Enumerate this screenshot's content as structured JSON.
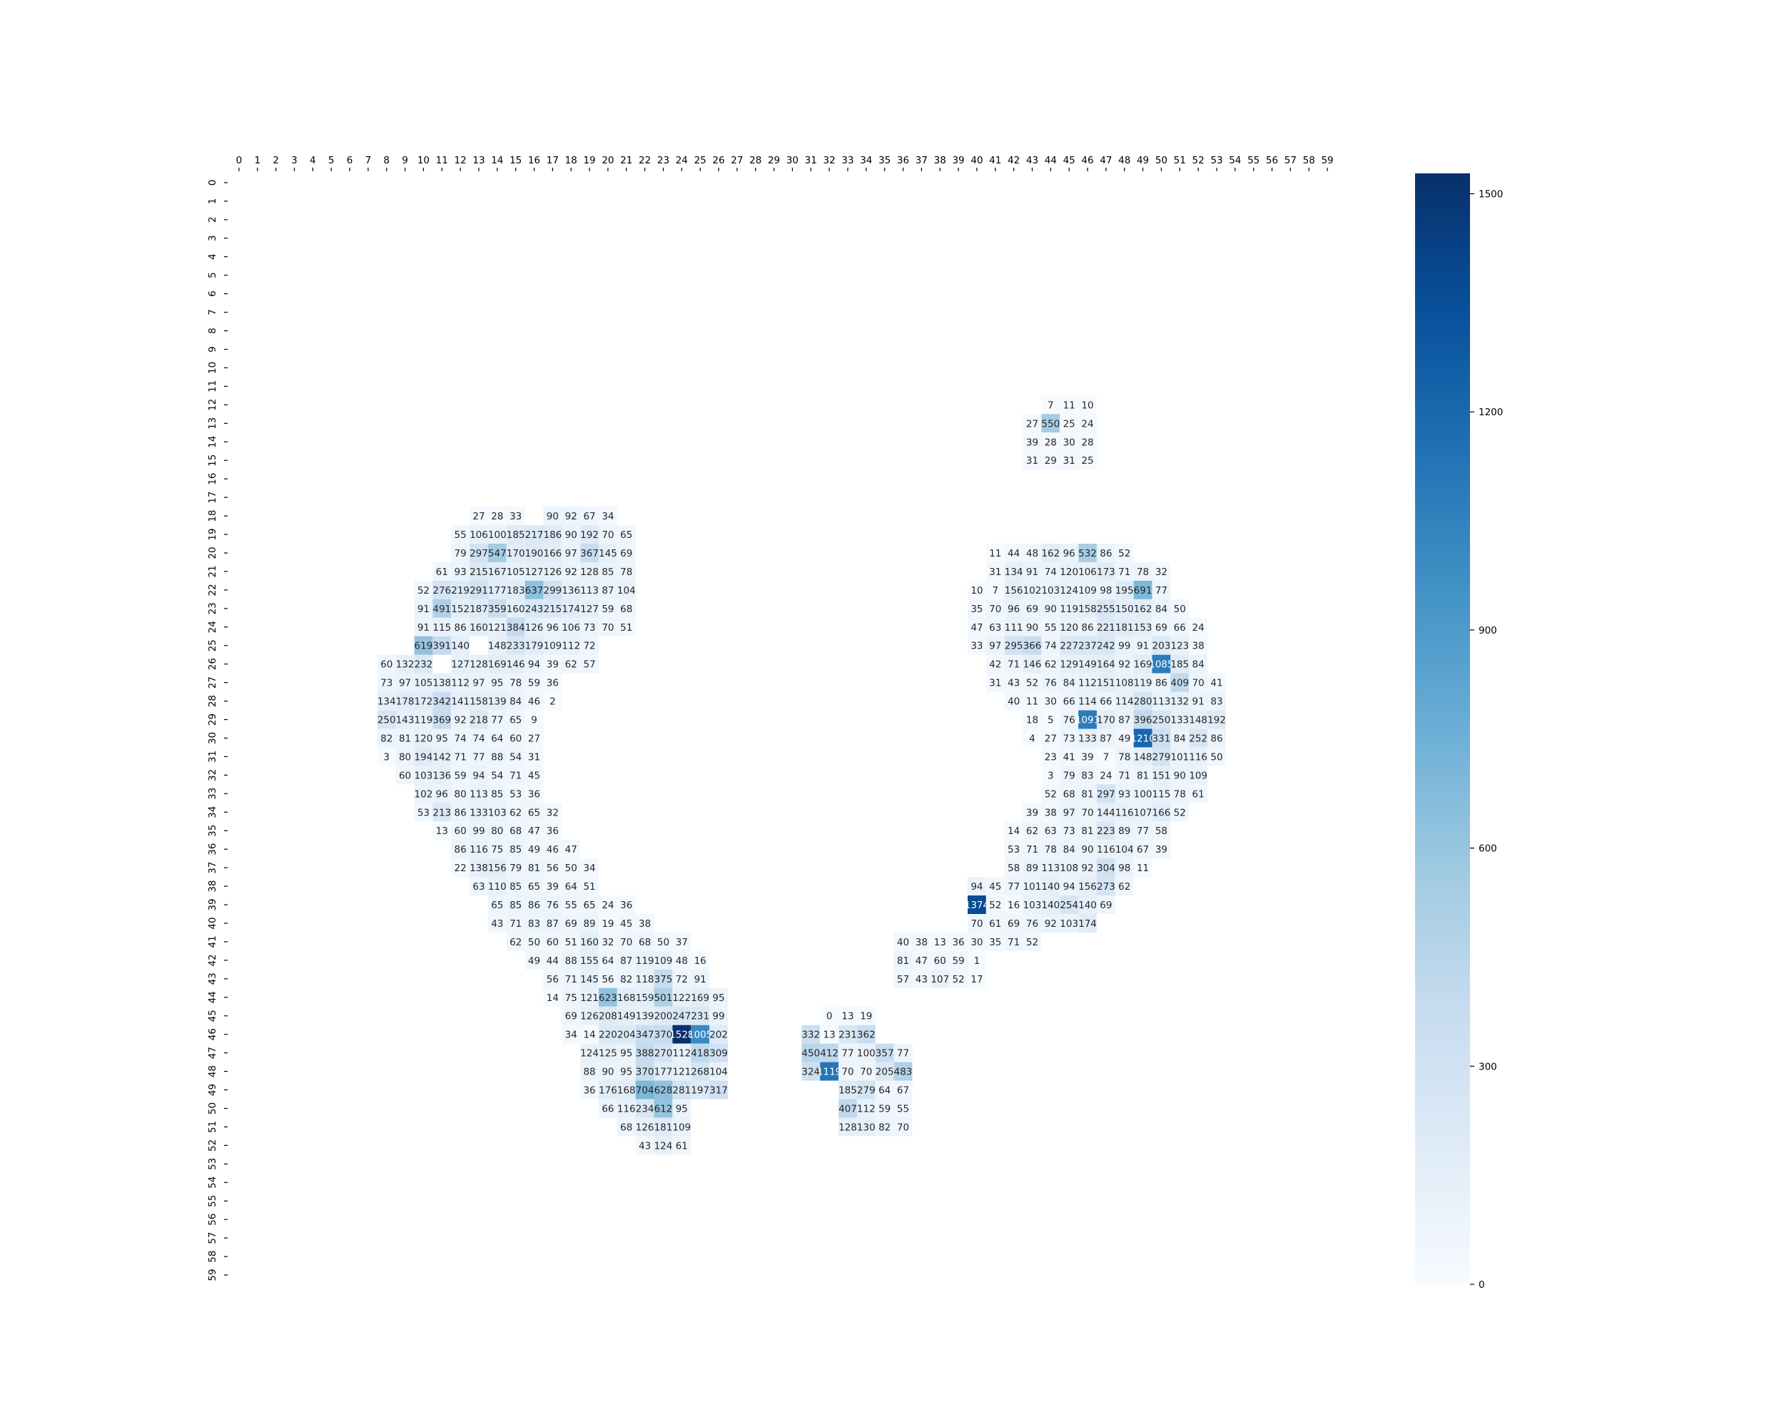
{
  "chart_data": {
    "type": "heatmap",
    "x_ticks": [
      "0",
      "1",
      "2",
      "3",
      "4",
      "5",
      "6",
      "7",
      "8",
      "9",
      "10",
      "11",
      "12",
      "13",
      "14",
      "15",
      "16",
      "17",
      "18",
      "19",
      "20",
      "21",
      "22",
      "23",
      "24",
      "25",
      "26",
      "27",
      "28",
      "29",
      "30",
      "31",
      "32",
      "33",
      "34",
      "35",
      "36",
      "37",
      "38",
      "39",
      "40",
      "41",
      "42",
      "43",
      "44",
      "45",
      "46",
      "47",
      "48",
      "49",
      "50",
      "51",
      "52",
      "53",
      "54",
      "55",
      "56",
      "57",
      "58",
      "59"
    ],
    "y_ticks": [
      "0",
      "1",
      "2",
      "3",
      "4",
      "5",
      "6",
      "7",
      "8",
      "9",
      "10",
      "11",
      "12",
      "13",
      "14",
      "15",
      "16",
      "17",
      "18",
      "19",
      "20",
      "21",
      "22",
      "23",
      "24",
      "25",
      "26",
      "27",
      "28",
      "29",
      "30",
      "31",
      "32",
      "33",
      "34",
      "35",
      "36",
      "37",
      "38",
      "39",
      "40",
      "41",
      "42",
      "43",
      "44",
      "45",
      "46",
      "47",
      "48",
      "49",
      "50",
      "51",
      "52",
      "53",
      "54",
      "55",
      "56",
      "57",
      "58",
      "59"
    ],
    "x_axis_position": "top",
    "colormap": "Blues",
    "vmin": 0,
    "vmax": 1528,
    "colorbar_ticks": [
      0,
      300,
      600,
      900,
      1200,
      1500
    ],
    "colors": {
      "low": "#f7fbff",
      "high": "#08306b"
    },
    "rows": [
      {
        "row": 12,
        "start": 44,
        "values": [
          7,
          11,
          10
        ]
      },
      {
        "row": 13,
        "start": 43,
        "values": [
          27,
          550,
          25,
          24
        ]
      },
      {
        "row": 14,
        "start": 43,
        "values": [
          39,
          28,
          30,
          28
        ]
      },
      {
        "row": 15,
        "start": 43,
        "values": [
          31,
          29,
          31,
          25
        ]
      },
      {
        "row": 18,
        "start": 13,
        "values": [
          27,
          28,
          33,
          null,
          90,
          92,
          67,
          34
        ]
      },
      {
        "row": 19,
        "start": 12,
        "values": [
          55,
          106,
          100,
          185,
          217,
          186,
          90,
          192,
          70,
          65
        ]
      },
      {
        "row": 20,
        "start": 12,
        "values": [
          79,
          297,
          547,
          170,
          190,
          166,
          97,
          367,
          145,
          69
        ]
      },
      {
        "row": 20,
        "start": 41,
        "values": [
          11,
          44,
          48,
          162,
          96,
          532,
          86,
          52
        ]
      },
      {
        "row": 21,
        "start": 11,
        "values": [
          61,
          93,
          215,
          167,
          105,
          127,
          126,
          92,
          128,
          85,
          78
        ]
      },
      {
        "row": 21,
        "start": 41,
        "values": [
          31,
          134,
          91,
          74,
          120,
          106,
          173,
          71,
          78,
          32
        ]
      },
      {
        "row": 22,
        "start": 10,
        "values": [
          52,
          276,
          219,
          291,
          177,
          183,
          637,
          299,
          136,
          113,
          87,
          104
        ]
      },
      {
        "row": 22,
        "start": 40,
        "values": [
          10,
          7,
          156,
          102,
          103,
          124,
          109,
          98,
          195,
          691,
          77
        ]
      },
      {
        "row": 23,
        "start": 10,
        "values": [
          91,
          491,
          152,
          187,
          359,
          160,
          243,
          215,
          174,
          127,
          59,
          68
        ]
      },
      {
        "row": 23,
        "start": 40,
        "values": [
          35,
          70,
          96,
          69,
          90,
          119,
          158,
          255,
          150,
          162,
          84,
          50
        ]
      },
      {
        "row": 24,
        "start": 10,
        "values": [
          91,
          115,
          86,
          160,
          121,
          384,
          126,
          96,
          106,
          73,
          70,
          51
        ]
      },
      {
        "row": 24,
        "start": 40,
        "values": [
          47,
          63,
          111,
          90,
          55,
          120,
          86,
          221,
          181,
          153,
          69,
          66,
          24
        ]
      },
      {
        "row": 25,
        "start": 10,
        "values": [
          619,
          391,
          140,
          null,
          148,
          233,
          179,
          109,
          112,
          72
        ]
      },
      {
        "row": 25,
        "start": 40,
        "values": [
          33,
          97,
          295,
          366,
          74,
          227,
          237,
          242,
          99,
          91,
          203,
          123,
          38
        ]
      },
      {
        "row": 26,
        "start": 8,
        "values": [
          60,
          132,
          232,
          null,
          127,
          128,
          169,
          146,
          94,
          39,
          62,
          57
        ]
      },
      {
        "row": 26,
        "start": 41,
        "values": [
          42,
          71,
          146,
          62,
          129,
          149,
          164,
          92,
          169,
          1085,
          185,
          84
        ]
      },
      {
        "row": 27,
        "start": 8,
        "values": [
          73,
          97,
          105,
          138,
          112,
          97,
          95,
          78,
          59,
          36
        ]
      },
      {
        "row": 27,
        "start": 41,
        "values": [
          31,
          43,
          52,
          76,
          84,
          112,
          151,
          108,
          119,
          86,
          409,
          70,
          41
        ]
      },
      {
        "row": 28,
        "start": 8,
        "values": [
          134,
          178,
          172,
          342,
          141,
          158,
          139,
          84,
          46,
          2
        ]
      },
      {
        "row": 28,
        "start": 42,
        "values": [
          40,
          11,
          30,
          66,
          114,
          66,
          114,
          280,
          113,
          132,
          91,
          83
        ]
      },
      {
        "row": 29,
        "start": 8,
        "values": [
          250,
          143,
          119,
          369,
          92,
          218,
          77,
          65,
          9
        ]
      },
      {
        "row": 29,
        "start": 43,
        "values": [
          18,
          5,
          76,
          1091,
          170,
          87,
          396,
          250,
          133,
          148,
          192
        ]
      },
      {
        "row": 30,
        "start": 8,
        "values": [
          82,
          81,
          120,
          95,
          74,
          74,
          64,
          60,
          27
        ]
      },
      {
        "row": 30,
        "start": 43,
        "values": [
          4,
          27,
          73,
          133,
          87,
          49,
          1210,
          331,
          84,
          252,
          86
        ]
      },
      {
        "row": 31,
        "start": 8,
        "values": [
          3,
          80,
          194,
          142,
          71,
          77,
          88,
          54,
          31
        ]
      },
      {
        "row": 31,
        "start": 44,
        "values": [
          23,
          41,
          39,
          7,
          78,
          148,
          279,
          101,
          116,
          50
        ]
      },
      {
        "row": 32,
        "start": 9,
        "values": [
          60,
          103,
          136,
          59,
          94,
          54,
          71,
          45
        ]
      },
      {
        "row": 32,
        "start": 44,
        "values": [
          3,
          79,
          83,
          24,
          71,
          81,
          151,
          90,
          109
        ]
      },
      {
        "row": 33,
        "start": 10,
        "values": [
          102,
          96,
          80,
          113,
          85,
          53,
          36
        ]
      },
      {
        "row": 33,
        "start": 44,
        "values": [
          52,
          68,
          81,
          297,
          93,
          100,
          115,
          78,
          61
        ]
      },
      {
        "row": 34,
        "start": 10,
        "values": [
          53,
          213,
          86,
          133,
          103,
          62,
          65,
          32
        ]
      },
      {
        "row": 34,
        "start": 43,
        "values": [
          39,
          38,
          97,
          70,
          144,
          116,
          107,
          166,
          52
        ]
      },
      {
        "row": 35,
        "start": 11,
        "values": [
          13,
          60,
          99,
          80,
          68,
          47,
          36
        ]
      },
      {
        "row": 35,
        "start": 42,
        "values": [
          14,
          62,
          63,
          73,
          81,
          223,
          89,
          77,
          58
        ]
      },
      {
        "row": 36,
        "start": 12,
        "values": [
          86,
          116,
          75,
          85,
          49,
          46,
          47
        ]
      },
      {
        "row": 36,
        "start": 42,
        "values": [
          53,
          71,
          78,
          84,
          90,
          116,
          104,
          67,
          39
        ]
      },
      {
        "row": 37,
        "start": 12,
        "values": [
          22,
          138,
          156,
          79,
          81,
          56,
          50,
          34
        ]
      },
      {
        "row": 37,
        "start": 42,
        "values": [
          58,
          89,
          113,
          108,
          92,
          304,
          98,
          11
        ]
      },
      {
        "row": 38,
        "start": 13,
        "values": [
          63,
          110,
          85,
          65,
          39,
          64,
          51
        ]
      },
      {
        "row": 38,
        "start": 40,
        "values": [
          94,
          45,
          77,
          101,
          140,
          94,
          156,
          273,
          62
        ]
      },
      {
        "row": 39,
        "start": 14,
        "values": [
          65,
          85,
          86,
          76,
          55,
          65,
          24,
          36
        ]
      },
      {
        "row": 39,
        "start": 40,
        "values": [
          1374,
          52,
          16,
          103,
          140,
          254,
          140,
          69
        ]
      },
      {
        "row": 40,
        "start": 14,
        "values": [
          43,
          71,
          83,
          87,
          69,
          89,
          19,
          45,
          38
        ]
      },
      {
        "row": 40,
        "start": 40,
        "values": [
          70,
          61,
          69,
          76,
          92,
          103,
          174
        ]
      },
      {
        "row": 41,
        "start": 15,
        "values": [
          62,
          50,
          60,
          51,
          160,
          32,
          70,
          68,
          50,
          37
        ]
      },
      {
        "row": 41,
        "start": 36,
        "values": [
          40,
          38,
          13,
          36,
          30,
          35,
          71,
          52
        ]
      },
      {
        "row": 42,
        "start": 16,
        "values": [
          49,
          44,
          88,
          155,
          64,
          87,
          119,
          109,
          48,
          16
        ]
      },
      {
        "row": 42,
        "start": 36,
        "values": [
          81,
          47,
          60,
          59,
          1
        ]
      },
      {
        "row": 43,
        "start": 17,
        "values": [
          56,
          71,
          145,
          56,
          82,
          118,
          375,
          72,
          91
        ]
      },
      {
        "row": 43,
        "start": 36,
        "values": [
          57,
          43,
          107,
          52,
          17
        ]
      },
      {
        "row": 44,
        "start": 17,
        "values": [
          14,
          75,
          121,
          623,
          168,
          159,
          501,
          122,
          169,
          95
        ]
      },
      {
        "row": 45,
        "start": 18,
        "values": [
          69,
          126,
          208,
          149,
          139,
          200,
          247,
          231,
          99
        ]
      },
      {
        "row": 45,
        "start": 32,
        "values": [
          0,
          13,
          19
        ]
      },
      {
        "row": 46,
        "start": 18,
        "values": [
          34,
          14,
          220,
          204,
          347,
          370,
          1528,
          1005,
          202
        ]
      },
      {
        "row": 46,
        "start": 31,
        "values": [
          332,
          13,
          231,
          362
        ]
      },
      {
        "row": 47,
        "start": 19,
        "values": [
          124,
          125,
          95,
          388,
          270,
          112,
          418,
          309
        ]
      },
      {
        "row": 47,
        "start": 31,
        "values": [
          450,
          412,
          77,
          100,
          357,
          77
        ]
      },
      {
        "row": 48,
        "start": 19,
        "values": [
          88,
          90,
          95,
          370,
          177,
          121,
          268,
          104
        ]
      },
      {
        "row": 48,
        "start": 31,
        "values": [
          324,
          1119,
          70,
          70,
          205,
          483
        ]
      },
      {
        "row": 49,
        "start": 19,
        "values": [
          36,
          176,
          168,
          704,
          628,
          281,
          197,
          317
        ]
      },
      {
        "row": 49,
        "start": 33,
        "values": [
          185,
          279,
          64,
          67
        ]
      },
      {
        "row": 50,
        "start": 20,
        "values": [
          66,
          116,
          234,
          612,
          95
        ]
      },
      {
        "row": 50,
        "start": 33,
        "values": [
          407,
          112,
          59,
          55
        ]
      },
      {
        "row": 51,
        "start": 21,
        "values": [
          68,
          126,
          181,
          109
        ]
      },
      {
        "row": 51,
        "start": 33,
        "values": [
          128,
          130,
          82,
          70
        ]
      },
      {
        "row": 52,
        "start": 22,
        "values": [
          43,
          124,
          61
        ]
      }
    ]
  }
}
